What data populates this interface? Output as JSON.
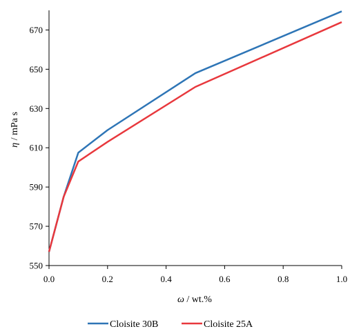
{
  "chart_data": {
    "type": "line",
    "xlabel_symbol": "ω",
    "xlabel_rest": " / wt.%",
    "ylabel_symbol": "η",
    "ylabel_rest": " / mPa s",
    "xlim": [
      0.0,
      1.0
    ],
    "ylim": [
      550,
      680
    ],
    "x_ticks": [
      "0.0",
      "0.2",
      "0.4",
      "0.6",
      "0.8",
      "1.0"
    ],
    "y_ticks": [
      "550",
      "570",
      "590",
      "610",
      "630",
      "650",
      "670"
    ],
    "grid": false,
    "legend_position": "bottom",
    "x": [
      0.0,
      0.05,
      0.1,
      0.2,
      0.5,
      1.0
    ],
    "series": [
      {
        "name": "Cloisite 30B",
        "color": "#2E75B6",
        "values": [
          557,
          585,
          607.5,
          619,
          648,
          679.5
        ]
      },
      {
        "name": "Cloisite 25A",
        "color": "#E8383D",
        "values": [
          557,
          585,
          603,
          613,
          641,
          674
        ]
      }
    ]
  }
}
